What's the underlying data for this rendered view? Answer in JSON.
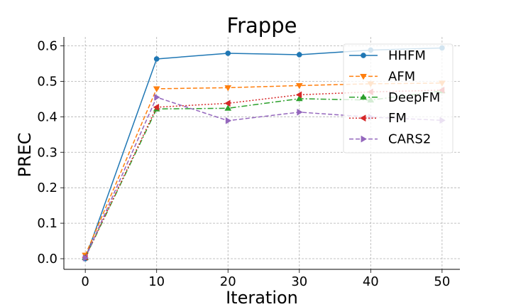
{
  "chart_data": {
    "type": "line",
    "title": "Frappe",
    "xlabel": "Iteration",
    "ylabel": "PREC",
    "x": [
      0,
      10,
      20,
      30,
      40,
      50
    ],
    "xticks": [
      "0",
      "10",
      "20",
      "30",
      "40",
      "50"
    ],
    "yticks": [
      "0.0",
      "0.1",
      "0.2",
      "0.3",
      "0.4",
      "0.5",
      "0.6"
    ],
    "xlim": [
      -3,
      52.5
    ],
    "ylim": [
      -0.03,
      0.625
    ],
    "grid": true,
    "legend_position": "upper-right",
    "series": [
      {
        "name": "HHFM",
        "color": "#1f77b4",
        "dash": "solid",
        "marker": "circle",
        "values": [
          0.0,
          0.563,
          0.579,
          0.575,
          0.588,
          0.594
        ]
      },
      {
        "name": "AFM",
        "color": "#ff7f0e",
        "dash": "dashed",
        "marker": "triangle-down",
        "values": [
          0.01,
          0.479,
          0.482,
          0.488,
          0.493,
          0.495
        ]
      },
      {
        "name": "DeepFM",
        "color": "#2ca02c",
        "dash": "dashdot",
        "marker": "triangle-up",
        "values": [
          0.003,
          0.422,
          0.424,
          0.451,
          0.447,
          0.473
        ]
      },
      {
        "name": "FM",
        "color": "#d62728",
        "dash": "dotted",
        "marker": "triangle-left",
        "values": [
          0.004,
          0.427,
          0.438,
          0.462,
          0.47,
          0.475
        ]
      },
      {
        "name": "CARS2",
        "color": "#9467bd",
        "dash": "dashed",
        "marker": "triangle-right",
        "values": [
          0.002,
          0.455,
          0.389,
          0.413,
          0.399,
          0.39
        ]
      }
    ]
  }
}
